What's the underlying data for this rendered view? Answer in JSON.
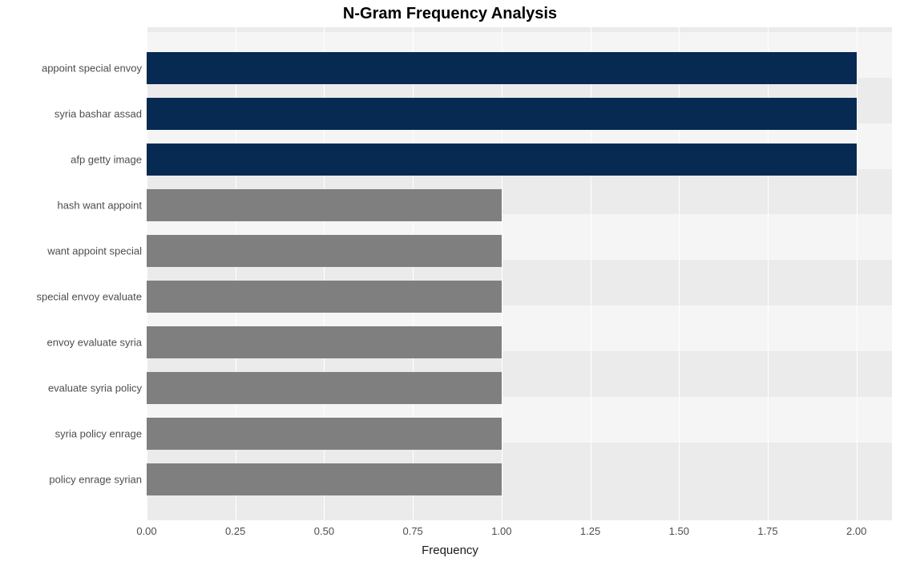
{
  "chart": {
    "type": "bar-horizontal",
    "title": "N-Gram Frequency Analysis",
    "title_fontsize": 20,
    "title_fontweight": "bold",
    "xlabel": "Frequency",
    "xlabel_fontsize": 15,
    "plot_bg": "#ebebeb",
    "band_bg": "#f5f5f5",
    "grid_color": "#ffffff",
    "text_color": "#4d4d4d",
    "xlim": [
      0,
      2.1
    ],
    "xticks": [
      0.0,
      0.25,
      0.5,
      0.75,
      1.0,
      1.25,
      1.5,
      1.75,
      2.0
    ],
    "xtick_labels": [
      "0.00",
      "0.25",
      "0.50",
      "0.75",
      "1.00",
      "1.25",
      "1.50",
      "1.75",
      "2.00"
    ],
    "xtick_fontsize": 13,
    "ytick_fontsize": 13,
    "bar_fill_height_ratio": 0.7,
    "colors": {
      "highlight": "#062a52",
      "normal": "#7f7f7f"
    },
    "items": [
      {
        "label": "appoint special envoy",
        "value": 2,
        "color": "highlight"
      },
      {
        "label": "syria bashar assad",
        "value": 2,
        "color": "highlight"
      },
      {
        "label": "afp getty image",
        "value": 2,
        "color": "highlight"
      },
      {
        "label": "hash want appoint",
        "value": 1,
        "color": "normal"
      },
      {
        "label": "want appoint special",
        "value": 1,
        "color": "normal"
      },
      {
        "label": "special envoy evaluate",
        "value": 1,
        "color": "normal"
      },
      {
        "label": "envoy evaluate syria",
        "value": 1,
        "color": "normal"
      },
      {
        "label": "evaluate syria policy",
        "value": 1,
        "color": "normal"
      },
      {
        "label": "syria policy enrage",
        "value": 1,
        "color": "normal"
      },
      {
        "label": "policy enrage syrian",
        "value": 1,
        "color": "normal"
      }
    ]
  }
}
